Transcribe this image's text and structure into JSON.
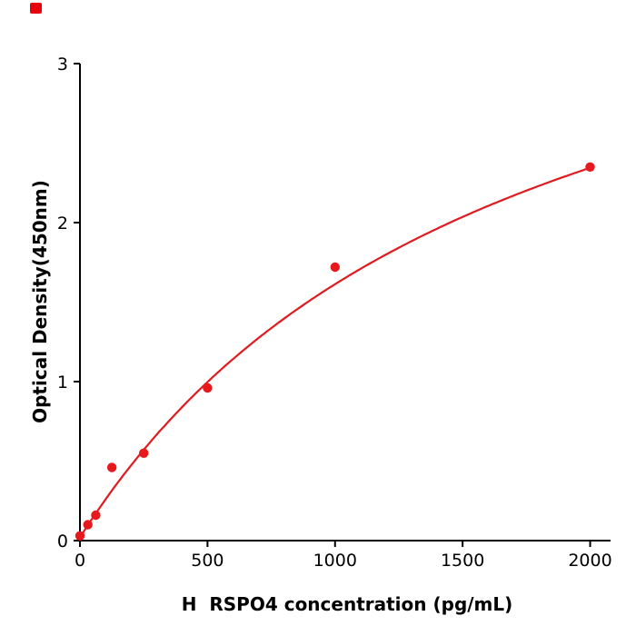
{
  "figure": {
    "corner_mark_color": "#e8000b"
  },
  "chart_data": {
    "type": "scatter",
    "title": "",
    "xlabel": "H  RSPO4 concentration (pg/mL)",
    "ylabel": "Optical Density(450nm)",
    "xlim": [
      0,
      2080
    ],
    "ylim": [
      0,
      3
    ],
    "xticks": [
      0,
      500,
      1000,
      1500,
      2000
    ],
    "yticks": [
      0,
      1,
      2,
      3
    ],
    "grid": false,
    "legend": null,
    "axis_color": "#000000",
    "point_color": "#e8191c",
    "line_color": "#e01b1f",
    "points": [
      {
        "x": 0,
        "y": 0.03
      },
      {
        "x": 31,
        "y": 0.1
      },
      {
        "x": 62,
        "y": 0.16
      },
      {
        "x": 125,
        "y": 0.46
      },
      {
        "x": 250,
        "y": 0.55
      },
      {
        "x": 500,
        "y": 0.96
      },
      {
        "x": 1000,
        "y": 1.72
      },
      {
        "x": 2000,
        "y": 2.35
      }
    ],
    "fit": {
      "type": "michaelis_menten",
      "a": 4.3,
      "k": 1700,
      "offset": 0.02,
      "x_start": 0,
      "x_end": 2000
    }
  }
}
